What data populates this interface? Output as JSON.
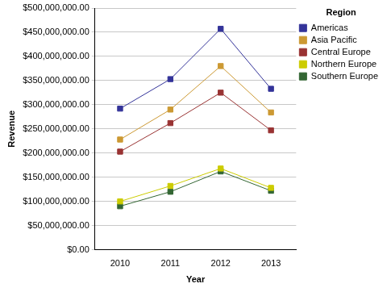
{
  "chart_data": {
    "type": "line",
    "x_label": "Year",
    "y_label": "Revenue",
    "legend_title": "Region",
    "legend": "right",
    "grid": true,
    "marker": "square",
    "categories": [
      "2010",
      "2011",
      "2012",
      "2013"
    ],
    "series": [
      {
        "name": "Americas",
        "color": "#333399",
        "values": [
          292000000,
          353000000,
          457000000,
          333000000
        ]
      },
      {
        "name": "Asia Pacific",
        "color": "#cc9933",
        "values": [
          228000000,
          290000000,
          380000000,
          284000000
        ]
      },
      {
        "name": "Central Europe",
        "color": "#993333",
        "values": [
          203000000,
          262000000,
          325000000,
          247000000
        ]
      },
      {
        "name": "Northern Europe",
        "color": "#cccc00",
        "values": [
          100000000,
          132000000,
          168000000,
          128000000
        ]
      },
      {
        "name": "Southern Europe",
        "color": "#336633",
        "values": [
          90000000,
          120000000,
          162000000,
          122000000
        ]
      }
    ],
    "ylim": [
      0,
      500000000
    ],
    "yticks": [
      {
        "value": 0,
        "label": "$0.00"
      },
      {
        "value": 50000000,
        "label": "$50,000,000.00"
      },
      {
        "value": 100000000,
        "label": "$100,000,000.00"
      },
      {
        "value": 150000000,
        "label": "$150,000,000.00"
      },
      {
        "value": 200000000,
        "label": "$200,000,000.00"
      },
      {
        "value": 250000000,
        "label": "$250,000,000.00"
      },
      {
        "value": 300000000,
        "label": "$300,000,000.00"
      },
      {
        "value": 350000000,
        "label": "$350,000,000.00"
      },
      {
        "value": 400000000,
        "label": "$400,000,000.00"
      },
      {
        "value": 450000000,
        "label": "$450,000,000.00"
      },
      {
        "value": 500000000,
        "label": "$500,000,000.00"
      }
    ]
  }
}
